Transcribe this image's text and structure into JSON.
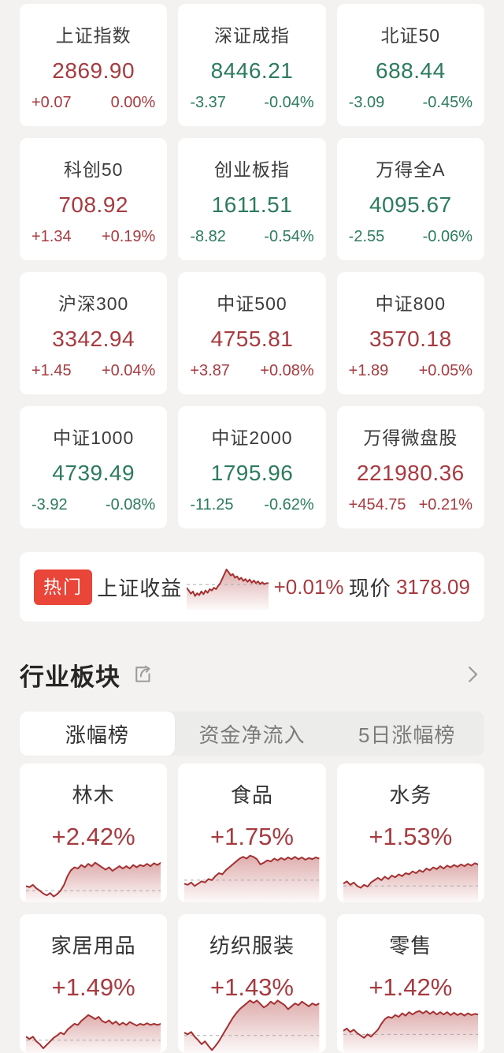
{
  "colors": {
    "up": "#a63b40",
    "down": "#2d7b5d",
    "badge_red": "#e94538",
    "spark_line": "#a53031"
  },
  "indices": [
    {
      "name": "上证指数",
      "value": "2869.90",
      "change": "+0.07",
      "pct": "0.00%",
      "dir": "up"
    },
    {
      "name": "深证成指",
      "value": "8446.21",
      "change": "-3.37",
      "pct": "-0.04%",
      "dir": "down"
    },
    {
      "name": "北证50",
      "value": "688.44",
      "change": "-3.09",
      "pct": "-0.45%",
      "dir": "down"
    },
    {
      "name": "科创50",
      "value": "708.92",
      "change": "+1.34",
      "pct": "+0.19%",
      "dir": "up"
    },
    {
      "name": "创业板指",
      "value": "1611.51",
      "change": "-8.82",
      "pct": "-0.54%",
      "dir": "down"
    },
    {
      "name": "万得全A",
      "value": "4095.67",
      "change": "-2.55",
      "pct": "-0.06%",
      "dir": "down"
    },
    {
      "name": "沪深300",
      "value": "3342.94",
      "change": "+1.45",
      "pct": "+0.04%",
      "dir": "up"
    },
    {
      "name": "中证500",
      "value": "4755.81",
      "change": "+3.87",
      "pct": "+0.08%",
      "dir": "up"
    },
    {
      "name": "中证800",
      "value": "3570.18",
      "change": "+1.89",
      "pct": "+0.05%",
      "dir": "up"
    },
    {
      "name": "中证1000",
      "value": "4739.49",
      "change": "-3.92",
      "pct": "-0.08%",
      "dir": "down"
    },
    {
      "name": "中证2000",
      "value": "1795.96",
      "change": "-11.25",
      "pct": "-0.62%",
      "dir": "down"
    },
    {
      "name": "万得微盘股",
      "value": "221980.36",
      "change": "+454.75",
      "pct": "+0.21%",
      "dir": "up"
    }
  ],
  "hot": {
    "badge": "热门",
    "name": "上证收益",
    "pct": "+0.01%",
    "price_label": "现价",
    "price": "3178.09",
    "spark": {
      "baseline": 0.45,
      "points": [
        0.52,
        0.58,
        0.65,
        0.6,
        0.7,
        0.64,
        0.68,
        0.6,
        0.66,
        0.58,
        0.63,
        0.55,
        0.58,
        0.52,
        0.55,
        0.48,
        0.42,
        0.32,
        0.22,
        0.12,
        0.18,
        0.25,
        0.22,
        0.3,
        0.27,
        0.34,
        0.3,
        0.37,
        0.33,
        0.39,
        0.34,
        0.41,
        0.36,
        0.42,
        0.38,
        0.44,
        0.4,
        0.44,
        0.42,
        0.42
      ]
    }
  },
  "section": {
    "title": "行业板块"
  },
  "tabs": [
    {
      "label": "涨幅榜",
      "active": true
    },
    {
      "label": "资金净流入",
      "active": false
    },
    {
      "label": "5日涨幅榜",
      "active": false
    }
  ],
  "sectors": [
    {
      "name": "林木",
      "pct": "+2.42%",
      "spark": {
        "baseline": 0.8,
        "points": [
          0.72,
          0.74,
          0.7,
          0.76,
          0.8,
          0.85,
          0.88,
          0.84,
          0.9,
          0.86,
          0.8,
          0.7,
          0.55,
          0.45,
          0.4,
          0.42,
          0.36,
          0.4,
          0.34,
          0.38,
          0.32,
          0.36,
          0.4,
          0.44,
          0.4,
          0.46,
          0.42,
          0.38,
          0.42,
          0.38,
          0.42,
          0.36,
          0.4,
          0.36,
          0.38,
          0.34,
          0.38,
          0.33,
          0.36,
          0.32
        ]
      }
    },
    {
      "name": "食品",
      "pct": "+1.75%",
      "spark": {
        "baseline": 0.62,
        "points": [
          0.68,
          0.7,
          0.66,
          0.72,
          0.68,
          0.64,
          0.66,
          0.6,
          0.62,
          0.55,
          0.5,
          0.52,
          0.45,
          0.4,
          0.35,
          0.3,
          0.25,
          0.22,
          0.25,
          0.2,
          0.22,
          0.26,
          0.35,
          0.32,
          0.28,
          0.3,
          0.25,
          0.28,
          0.24,
          0.27,
          0.23,
          0.26,
          0.22,
          0.26,
          0.23,
          0.27,
          0.24,
          0.26,
          0.23,
          0.25
        ]
      }
    },
    {
      "name": "水务",
      "pct": "+1.53%",
      "spark": {
        "baseline": 0.72,
        "points": [
          0.68,
          0.64,
          0.7,
          0.66,
          0.72,
          0.75,
          0.7,
          0.73,
          0.66,
          0.62,
          0.58,
          0.62,
          0.56,
          0.6,
          0.54,
          0.57,
          0.52,
          0.55,
          0.5,
          0.52,
          0.47,
          0.5,
          0.45,
          0.48,
          0.42,
          0.45,
          0.4,
          0.43,
          0.38,
          0.42,
          0.37,
          0.4,
          0.36,
          0.39,
          0.35,
          0.38,
          0.34,
          0.37,
          0.33,
          0.35
        ]
      }
    },
    {
      "name": "家居用品",
      "pct": "+1.49%",
      "spark": {
        "baseline": 0.78,
        "points": [
          0.72,
          0.76,
          0.72,
          0.8,
          0.85,
          0.92,
          0.86,
          0.8,
          0.74,
          0.7,
          0.65,
          0.68,
          0.6,
          0.55,
          0.5,
          0.52,
          0.45,
          0.4,
          0.35,
          0.38,
          0.42,
          0.38,
          0.45,
          0.48,
          0.44,
          0.5,
          0.46,
          0.52,
          0.48,
          0.52,
          0.47,
          0.5,
          0.53,
          0.5,
          0.52,
          0.49,
          0.52,
          0.5,
          0.52,
          0.5
        ]
      }
    },
    {
      "name": "纺织服装",
      "pct": "+1.43%",
      "spark": {
        "baseline": 0.7,
        "points": [
          0.65,
          0.68,
          0.64,
          0.72,
          0.78,
          0.85,
          0.8,
          0.88,
          0.95,
          0.88,
          0.8,
          0.7,
          0.6,
          0.5,
          0.4,
          0.32,
          0.25,
          0.2,
          0.15,
          0.1,
          0.14,
          0.1,
          0.16,
          0.22,
          0.18,
          0.12,
          0.16,
          0.1,
          0.14,
          0.18,
          0.25,
          0.2,
          0.15,
          0.18,
          0.12,
          0.16,
          0.2,
          0.15,
          0.18,
          0.15
        ]
      }
    },
    {
      "name": "零售",
      "pct": "+1.42%",
      "spark": {
        "baseline": 0.68,
        "points": [
          0.62,
          0.58,
          0.64,
          0.6,
          0.66,
          0.7,
          0.74,
          0.68,
          0.72,
          0.66,
          0.6,
          0.5,
          0.42,
          0.38,
          0.4,
          0.35,
          0.38,
          0.32,
          0.36,
          0.3,
          0.34,
          0.3,
          0.28,
          0.32,
          0.28,
          0.33,
          0.29,
          0.34,
          0.3,
          0.34,
          0.3,
          0.35,
          0.31,
          0.35,
          0.32,
          0.36,
          0.32,
          0.35,
          0.33,
          0.34
        ]
      }
    }
  ]
}
